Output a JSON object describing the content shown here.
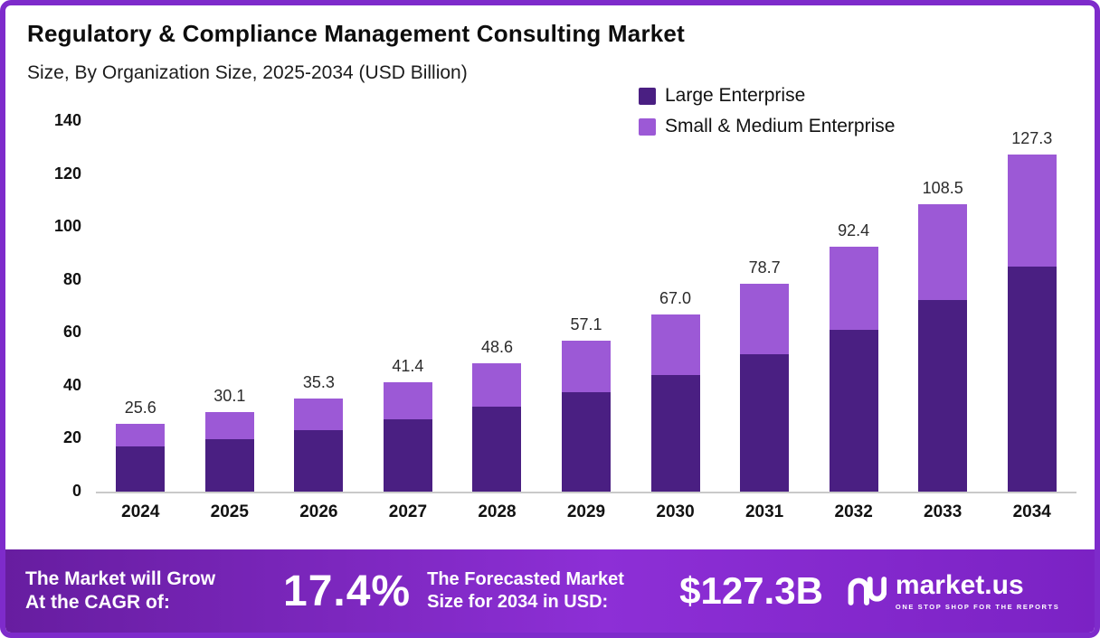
{
  "title": "Regulatory & Compliance Management Consulting Market",
  "subtitle": "Size, By Organization Size, 2025-2034 (USD Billion)",
  "legend": {
    "items": [
      {
        "label": "Large Enterprise",
        "color": "#4a1f82"
      },
      {
        "label": "Small & Medium Enterprise",
        "color": "#9c59d6"
      }
    ]
  },
  "chart_data": {
    "type": "bar",
    "stacked": true,
    "title": "Regulatory & Compliance Management Consulting Market Size, By Organization Size, 2025-2034 (USD Billion)",
    "xlabel": "",
    "ylabel": "USD Billion",
    "ylim": [
      0,
      140
    ],
    "yticks": [
      0,
      20,
      40,
      60,
      80,
      100,
      120,
      140
    ],
    "grid": false,
    "legend_position": "top-right",
    "categories": [
      "2024",
      "2025",
      "2026",
      "2027",
      "2028",
      "2029",
      "2030",
      "2031",
      "2032",
      "2033",
      "2034"
    ],
    "series": [
      {
        "name": "Large Enterprise",
        "color": "#4a1f82",
        "values": [
          17.0,
          19.8,
          23.2,
          27.2,
          32.0,
          37.7,
          44.2,
          52.0,
          61.0,
          72.4,
          84.9
        ]
      },
      {
        "name": "Small & Medium Enterprise",
        "color": "#9c59d6",
        "values": [
          8.6,
          10.3,
          12.1,
          14.2,
          16.6,
          19.4,
          22.8,
          26.7,
          31.4,
          36.1,
          42.4
        ]
      }
    ],
    "totals": [
      "25.6",
      "30.1",
      "35.3",
      "41.4",
      "48.6",
      "57.1",
      "67.0",
      "78.7",
      "92.4",
      "108.5",
      "127.3"
    ]
  },
  "banner": {
    "left_line1": "The Market will Grow",
    "left_line2": "At the CAGR of:",
    "cagr": "17.4%",
    "forecast_line1": "The Forecasted Market",
    "forecast_line2": "Size for 2034 in USD:",
    "forecast_value": "$127.3B",
    "brand": "market.us",
    "tagline": "ONE STOP SHOP FOR THE REPORTS"
  }
}
